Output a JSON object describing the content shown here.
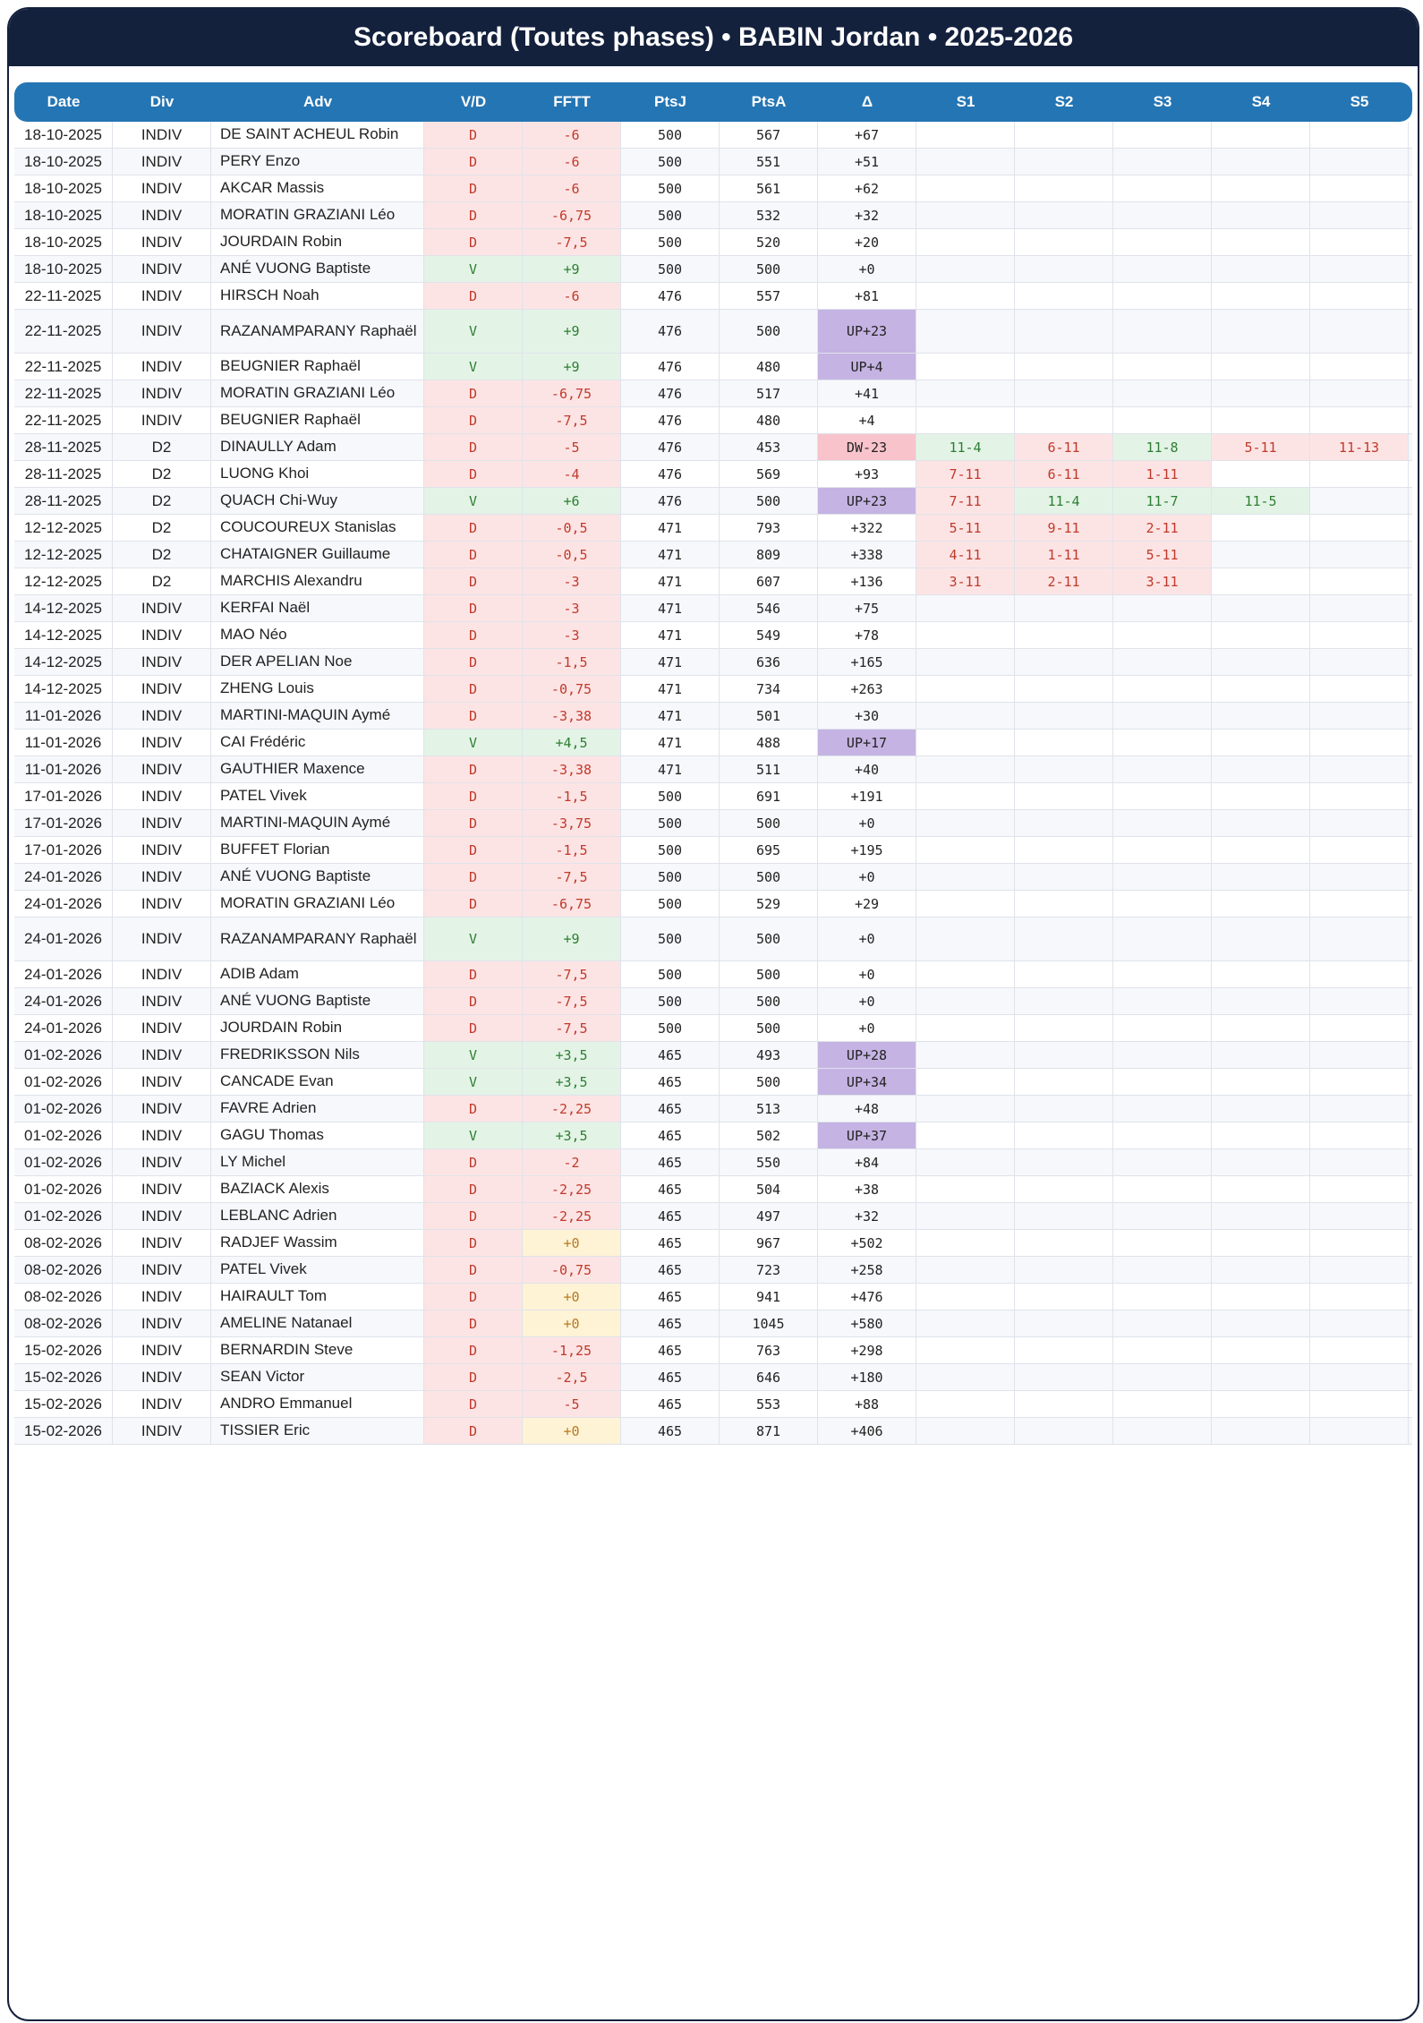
{
  "title": "Scoreboard (Toutes phases) • BABIN Jordan • 2025-2026",
  "columns": [
    "Date",
    "Div",
    "Adv",
    "V/D",
    "FFTT",
    "PtsJ",
    "PtsA",
    "Δ",
    "S1",
    "S2",
    "S3",
    "S4",
    "S5"
  ],
  "rows": [
    {
      "date": "18-10-2025",
      "div": "INDIV",
      "adv": "DE SAINT ACHEUL Robin",
      "vd": "D",
      "fftt": "-6",
      "ptsj": "500",
      "ptsa": "567",
      "delta": "+67",
      "sets": [
        "",
        "",
        "",
        "",
        ""
      ]
    },
    {
      "date": "18-10-2025",
      "div": "INDIV",
      "adv": "PERY Enzo",
      "vd": "D",
      "fftt": "-6",
      "ptsj": "500",
      "ptsa": "551",
      "delta": "+51",
      "sets": [
        "",
        "",
        "",
        "",
        ""
      ]
    },
    {
      "date": "18-10-2025",
      "div": "INDIV",
      "adv": "AKCAR Massis",
      "vd": "D",
      "fftt": "-6",
      "ptsj": "500",
      "ptsa": "561",
      "delta": "+62",
      "sets": [
        "",
        "",
        "",
        "",
        ""
      ]
    },
    {
      "date": "18-10-2025",
      "div": "INDIV",
      "adv": "MORATIN GRAZIANI Léo",
      "vd": "D",
      "fftt": "-6,75",
      "ptsj": "500",
      "ptsa": "532",
      "delta": "+32",
      "sets": [
        "",
        "",
        "",
        "",
        ""
      ]
    },
    {
      "date": "18-10-2025",
      "div": "INDIV",
      "adv": "JOURDAIN Robin",
      "vd": "D",
      "fftt": "-7,5",
      "ptsj": "500",
      "ptsa": "520",
      "delta": "+20",
      "sets": [
        "",
        "",
        "",
        "",
        ""
      ]
    },
    {
      "date": "18-10-2025",
      "div": "INDIV",
      "adv": "ANÉ VUONG Baptiste",
      "vd": "V",
      "fftt": "+9",
      "ptsj": "500",
      "ptsa": "500",
      "delta": "+0",
      "sets": [
        "",
        "",
        "",
        "",
        ""
      ]
    },
    {
      "date": "22-11-2025",
      "div": "INDIV",
      "adv": "HIRSCH Noah",
      "vd": "D",
      "fftt": "-6",
      "ptsj": "476",
      "ptsa": "557",
      "delta": "+81",
      "sets": [
        "",
        "",
        "",
        "",
        ""
      ]
    },
    {
      "date": "22-11-2025",
      "div": "INDIV",
      "adv": "RAZANAMPARANY Raphaël",
      "vd": "V",
      "fftt": "+9",
      "ptsj": "476",
      "ptsa": "500",
      "delta": "UP+23",
      "sets": [
        "",
        "",
        "",
        "",
        ""
      ],
      "tall": true
    },
    {
      "date": "22-11-2025",
      "div": "INDIV",
      "adv": "BEUGNIER Raphaël",
      "vd": "V",
      "fftt": "+9",
      "ptsj": "476",
      "ptsa": "480",
      "delta": "UP+4",
      "sets": [
        "",
        "",
        "",
        "",
        ""
      ]
    },
    {
      "date": "22-11-2025",
      "div": "INDIV",
      "adv": "MORATIN GRAZIANI Léo",
      "vd": "D",
      "fftt": "-6,75",
      "ptsj": "476",
      "ptsa": "517",
      "delta": "+41",
      "sets": [
        "",
        "",
        "",
        "",
        ""
      ]
    },
    {
      "date": "22-11-2025",
      "div": "INDIV",
      "adv": "BEUGNIER Raphaël",
      "vd": "D",
      "fftt": "-7,5",
      "ptsj": "476",
      "ptsa": "480",
      "delta": "+4",
      "sets": [
        "",
        "",
        "",
        "",
        ""
      ]
    },
    {
      "date": "28-11-2025",
      "div": "D2",
      "adv": "DINAULLY Adam",
      "vd": "D",
      "fftt": "-5",
      "ptsj": "476",
      "ptsa": "453",
      "delta": "DW-23",
      "sets": [
        "11-4",
        "6-11",
        "11-8",
        "5-11",
        "11-13"
      ]
    },
    {
      "date": "28-11-2025",
      "div": "D2",
      "adv": "LUONG Khoi",
      "vd": "D",
      "fftt": "-4",
      "ptsj": "476",
      "ptsa": "569",
      "delta": "+93",
      "sets": [
        "7-11",
        "6-11",
        "1-11",
        "",
        ""
      ]
    },
    {
      "date": "28-11-2025",
      "div": "D2",
      "adv": "QUACH Chi-Wuy",
      "vd": "V",
      "fftt": "+6",
      "ptsj": "476",
      "ptsa": "500",
      "delta": "UP+23",
      "sets": [
        "7-11",
        "11-4",
        "11-7",
        "11-5",
        ""
      ]
    },
    {
      "date": "12-12-2025",
      "div": "D2",
      "adv": "COUCOUREUX Stanislas",
      "vd": "D",
      "fftt": "-0,5",
      "ptsj": "471",
      "ptsa": "793",
      "delta": "+322",
      "sets": [
        "5-11",
        "9-11",
        "2-11",
        "",
        ""
      ]
    },
    {
      "date": "12-12-2025",
      "div": "D2",
      "adv": "CHATAIGNER Guillaume",
      "vd": "D",
      "fftt": "-0,5",
      "ptsj": "471",
      "ptsa": "809",
      "delta": "+338",
      "sets": [
        "4-11",
        "1-11",
        "5-11",
        "",
        ""
      ]
    },
    {
      "date": "12-12-2025",
      "div": "D2",
      "adv": "MARCHIS Alexandru",
      "vd": "D",
      "fftt": "-3",
      "ptsj": "471",
      "ptsa": "607",
      "delta": "+136",
      "sets": [
        "3-11",
        "2-11",
        "3-11",
        "",
        ""
      ]
    },
    {
      "date": "14-12-2025",
      "div": "INDIV",
      "adv": "KERFAI Naël",
      "vd": "D",
      "fftt": "-3",
      "ptsj": "471",
      "ptsa": "546",
      "delta": "+75",
      "sets": [
        "",
        "",
        "",
        "",
        ""
      ]
    },
    {
      "date": "14-12-2025",
      "div": "INDIV",
      "adv": "MAO Néo",
      "vd": "D",
      "fftt": "-3",
      "ptsj": "471",
      "ptsa": "549",
      "delta": "+78",
      "sets": [
        "",
        "",
        "",
        "",
        ""
      ]
    },
    {
      "date": "14-12-2025",
      "div": "INDIV",
      "adv": "DER APELIAN Noe",
      "vd": "D",
      "fftt": "-1,5",
      "ptsj": "471",
      "ptsa": "636",
      "delta": "+165",
      "sets": [
        "",
        "",
        "",
        "",
        ""
      ]
    },
    {
      "date": "14-12-2025",
      "div": "INDIV",
      "adv": "ZHENG Louis",
      "vd": "D",
      "fftt": "-0,75",
      "ptsj": "471",
      "ptsa": "734",
      "delta": "+263",
      "sets": [
        "",
        "",
        "",
        "",
        ""
      ]
    },
    {
      "date": "11-01-2026",
      "div": "INDIV",
      "adv": "MARTINI-MAQUIN Aymé",
      "vd": "D",
      "fftt": "-3,38",
      "ptsj": "471",
      "ptsa": "501",
      "delta": "+30",
      "sets": [
        "",
        "",
        "",
        "",
        ""
      ]
    },
    {
      "date": "11-01-2026",
      "div": "INDIV",
      "adv": "CAI Frédéric",
      "vd": "V",
      "fftt": "+4,5",
      "ptsj": "471",
      "ptsa": "488",
      "delta": "UP+17",
      "sets": [
        "",
        "",
        "",
        "",
        ""
      ]
    },
    {
      "date": "11-01-2026",
      "div": "INDIV",
      "adv": "GAUTHIER Maxence",
      "vd": "D",
      "fftt": "-3,38",
      "ptsj": "471",
      "ptsa": "511",
      "delta": "+40",
      "sets": [
        "",
        "",
        "",
        "",
        ""
      ]
    },
    {
      "date": "17-01-2026",
      "div": "INDIV",
      "adv": "PATEL Vivek",
      "vd": "D",
      "fftt": "-1,5",
      "ptsj": "500",
      "ptsa": "691",
      "delta": "+191",
      "sets": [
        "",
        "",
        "",
        "",
        ""
      ]
    },
    {
      "date": "17-01-2026",
      "div": "INDIV",
      "adv": "MARTINI-MAQUIN Aymé",
      "vd": "D",
      "fftt": "-3,75",
      "ptsj": "500",
      "ptsa": "500",
      "delta": "+0",
      "sets": [
        "",
        "",
        "",
        "",
        ""
      ]
    },
    {
      "date": "17-01-2026",
      "div": "INDIV",
      "adv": "BUFFET Florian",
      "vd": "D",
      "fftt": "-1,5",
      "ptsj": "500",
      "ptsa": "695",
      "delta": "+195",
      "sets": [
        "",
        "",
        "",
        "",
        ""
      ]
    },
    {
      "date": "24-01-2026",
      "div": "INDIV",
      "adv": "ANÉ VUONG Baptiste",
      "vd": "D",
      "fftt": "-7,5",
      "ptsj": "500",
      "ptsa": "500",
      "delta": "+0",
      "sets": [
        "",
        "",
        "",
        "",
        ""
      ]
    },
    {
      "date": "24-01-2026",
      "div": "INDIV",
      "adv": "MORATIN GRAZIANI Léo",
      "vd": "D",
      "fftt": "-6,75",
      "ptsj": "500",
      "ptsa": "529",
      "delta": "+29",
      "sets": [
        "",
        "",
        "",
        "",
        ""
      ]
    },
    {
      "date": "24-01-2026",
      "div": "INDIV",
      "adv": "RAZANAMPARANY Raphaël",
      "vd": "V",
      "fftt": "+9",
      "ptsj": "500",
      "ptsa": "500",
      "delta": "+0",
      "sets": [
        "",
        "",
        "",
        "",
        ""
      ],
      "tall": true
    },
    {
      "date": "24-01-2026",
      "div": "INDIV",
      "adv": "ADIB Adam",
      "vd": "D",
      "fftt": "-7,5",
      "ptsj": "500",
      "ptsa": "500",
      "delta": "+0",
      "sets": [
        "",
        "",
        "",
        "",
        ""
      ]
    },
    {
      "date": "24-01-2026",
      "div": "INDIV",
      "adv": "ANÉ VUONG Baptiste",
      "vd": "D",
      "fftt": "-7,5",
      "ptsj": "500",
      "ptsa": "500",
      "delta": "+0",
      "sets": [
        "",
        "",
        "",
        "",
        ""
      ]
    },
    {
      "date": "24-01-2026",
      "div": "INDIV",
      "adv": "JOURDAIN Robin",
      "vd": "D",
      "fftt": "-7,5",
      "ptsj": "500",
      "ptsa": "500",
      "delta": "+0",
      "sets": [
        "",
        "",
        "",
        "",
        ""
      ]
    },
    {
      "date": "01-02-2026",
      "div": "INDIV",
      "adv": "FREDRIKSSON Nils",
      "vd": "V",
      "fftt": "+3,5",
      "ptsj": "465",
      "ptsa": "493",
      "delta": "UP+28",
      "sets": [
        "",
        "",
        "",
        "",
        ""
      ]
    },
    {
      "date": "01-02-2026",
      "div": "INDIV",
      "adv": "CANCADE Evan",
      "vd": "V",
      "fftt": "+3,5",
      "ptsj": "465",
      "ptsa": "500",
      "delta": "UP+34",
      "sets": [
        "",
        "",
        "",
        "",
        ""
      ]
    },
    {
      "date": "01-02-2026",
      "div": "INDIV",
      "adv": "FAVRE Adrien",
      "vd": "D",
      "fftt": "-2,25",
      "ptsj": "465",
      "ptsa": "513",
      "delta": "+48",
      "sets": [
        "",
        "",
        "",
        "",
        ""
      ]
    },
    {
      "date": "01-02-2026",
      "div": "INDIV",
      "adv": "GAGU Thomas",
      "vd": "V",
      "fftt": "+3,5",
      "ptsj": "465",
      "ptsa": "502",
      "delta": "UP+37",
      "sets": [
        "",
        "",
        "",
        "",
        ""
      ]
    },
    {
      "date": "01-02-2026",
      "div": "INDIV",
      "adv": "LY Michel",
      "vd": "D",
      "fftt": "-2",
      "ptsj": "465",
      "ptsa": "550",
      "delta": "+84",
      "sets": [
        "",
        "",
        "",
        "",
        ""
      ]
    },
    {
      "date": "01-02-2026",
      "div": "INDIV",
      "adv": "BAZIACK Alexis",
      "vd": "D",
      "fftt": "-2,25",
      "ptsj": "465",
      "ptsa": "504",
      "delta": "+38",
      "sets": [
        "",
        "",
        "",
        "",
        ""
      ]
    },
    {
      "date": "01-02-2026",
      "div": "INDIV",
      "adv": "LEBLANC Adrien",
      "vd": "D",
      "fftt": "-2,25",
      "ptsj": "465",
      "ptsa": "497",
      "delta": "+32",
      "sets": [
        "",
        "",
        "",
        "",
        ""
      ]
    },
    {
      "date": "08-02-2026",
      "div": "INDIV",
      "adv": "RADJEF Wassim",
      "vd": "D",
      "fftt": "+0",
      "ptsj": "465",
      "ptsa": "967",
      "delta": "+502",
      "sets": [
        "",
        "",
        "",
        "",
        ""
      ]
    },
    {
      "date": "08-02-2026",
      "div": "INDIV",
      "adv": "PATEL Vivek",
      "vd": "D",
      "fftt": "-0,75",
      "ptsj": "465",
      "ptsa": "723",
      "delta": "+258",
      "sets": [
        "",
        "",
        "",
        "",
        ""
      ]
    },
    {
      "date": "08-02-2026",
      "div": "INDIV",
      "adv": "HAIRAULT Tom",
      "vd": "D",
      "fftt": "+0",
      "ptsj": "465",
      "ptsa": "941",
      "delta": "+476",
      "sets": [
        "",
        "",
        "",
        "",
        ""
      ]
    },
    {
      "date": "08-02-2026",
      "div": "INDIV",
      "adv": "AMELINE Natanael",
      "vd": "D",
      "fftt": "+0",
      "ptsj": "465",
      "ptsa": "1045",
      "delta": "+580",
      "sets": [
        "",
        "",
        "",
        "",
        ""
      ]
    },
    {
      "date": "15-02-2026",
      "div": "INDIV",
      "adv": "BERNARDIN Steve",
      "vd": "D",
      "fftt": "-1,25",
      "ptsj": "465",
      "ptsa": "763",
      "delta": "+298",
      "sets": [
        "",
        "",
        "",
        "",
        ""
      ]
    },
    {
      "date": "15-02-2026",
      "div": "INDIV",
      "adv": "SEAN Victor",
      "vd": "D",
      "fftt": "-2,5",
      "ptsj": "465",
      "ptsa": "646",
      "delta": "+180",
      "sets": [
        "",
        "",
        "",
        "",
        ""
      ]
    },
    {
      "date": "15-02-2026",
      "div": "INDIV",
      "adv": "ANDRO Emmanuel",
      "vd": "D",
      "fftt": "-5",
      "ptsj": "465",
      "ptsa": "553",
      "delta": "+88",
      "sets": [
        "",
        "",
        "",
        "",
        ""
      ]
    },
    {
      "date": "15-02-2026",
      "div": "INDIV",
      "adv": "TISSIER Eric",
      "vd": "D",
      "fftt": "+0",
      "ptsj": "465",
      "ptsa": "871",
      "delta": "+406",
      "sets": [
        "",
        "",
        "",
        "",
        ""
      ]
    }
  ]
}
